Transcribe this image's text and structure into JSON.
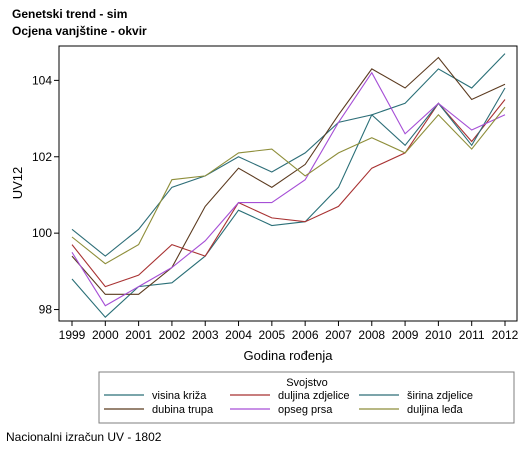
{
  "header": {
    "title": "Genetski trend - sim",
    "subtitle": "Ocjena vanjštine - okvir"
  },
  "footnote": "Nacionalni izračun UV - 1802",
  "chart_data": {
    "type": "line",
    "xlabel": "Godina rođenja",
    "ylabel": "UV12",
    "x": [
      1999,
      2000,
      2001,
      2002,
      2003,
      2004,
      2005,
      2006,
      2007,
      2008,
      2009,
      2010,
      2011,
      2012
    ],
    "xlim": [
      1999,
      2012
    ],
    "ylim": [
      97.7,
      104.9
    ],
    "yticks": [
      98,
      100,
      102,
      104
    ],
    "grid": false,
    "legend": {
      "title": "Svojstvo",
      "placement": "bottom"
    },
    "series": [
      {
        "name": "visina križa",
        "color": "#2a6f77",
        "values": [
          98.8,
          97.8,
          98.6,
          98.7,
          99.4,
          100.6,
          100.2,
          100.3,
          101.2,
          103.1,
          103.4,
          104.3,
          103.8,
          104.7
        ]
      },
      {
        "name": "duljina zdjelice",
        "color": "#a83232",
        "values": [
          99.7,
          98.6,
          98.9,
          99.7,
          99.4,
          100.8,
          100.4,
          100.3,
          100.7,
          101.7,
          102.1,
          103.4,
          102.4,
          103.5
        ]
      },
      {
        "name": "širina zdjelice",
        "color": "#2e6e78",
        "values": [
          100.1,
          99.4,
          100.1,
          101.2,
          101.5,
          102.0,
          101.6,
          102.1,
          102.9,
          103.1,
          102.3,
          103.4,
          102.3,
          103.8
        ]
      },
      {
        "name": "dubina trupa",
        "color": "#5b3a1f",
        "values": [
          99.4,
          98.4,
          98.4,
          99.1,
          100.7,
          101.7,
          101.2,
          101.8,
          103.1,
          104.3,
          103.8,
          104.6,
          103.5,
          103.9
        ]
      },
      {
        "name": "opseg prsa",
        "color": "#a64fd6",
        "values": [
          99.5,
          98.1,
          98.6,
          99.1,
          99.8,
          100.8,
          100.8,
          101.4,
          102.9,
          104.2,
          102.6,
          103.4,
          102.7,
          103.1
        ]
      },
      {
        "name": "duljina leđa",
        "color": "#8e8e3a",
        "values": [
          99.9,
          99.2,
          99.7,
          101.4,
          101.5,
          102.1,
          102.2,
          101.5,
          102.1,
          102.5,
          102.1,
          103.1,
          102.2,
          103.3
        ]
      }
    ]
  }
}
